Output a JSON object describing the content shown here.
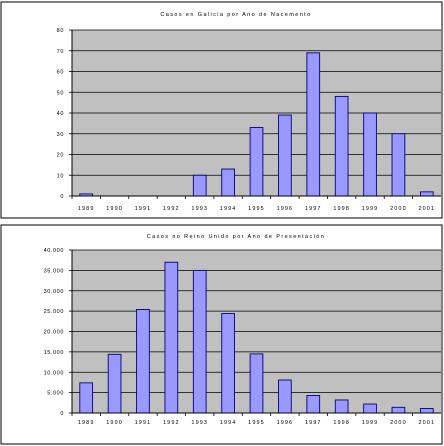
{
  "chart_data": [
    {
      "type": "bar",
      "title": "Casos en Galicia por Ano de Nacemento",
      "categories": [
        "1989",
        "1990",
        "1991",
        "1992",
        "1993",
        "1994",
        "1995",
        "1996",
        "1997",
        "1998",
        "1999",
        "2000",
        "2001"
      ],
      "values": [
        1,
        0,
        0,
        0,
        10,
        13,
        33,
        39,
        69,
        48,
        40,
        30,
        2
      ],
      "yticks": [
        "0",
        "10",
        "20",
        "30",
        "40",
        "50",
        "60",
        "70",
        "80"
      ],
      "ylim": [
        0,
        80
      ],
      "grid": true,
      "colors": {
        "plot_bg": "#c0c0c0",
        "bar_fill": "#9999ff",
        "bar_stroke": "#000080",
        "grid": "#000000"
      }
    },
    {
      "type": "bar",
      "title": "Casos no Reino Unido por Ano de Presentación",
      "categories": [
        "1989",
        "1990",
        "1991",
        "1992",
        "1993",
        "1994",
        "1995",
        "1996",
        "1997",
        "1998",
        "1999",
        "2000",
        "2001"
      ],
      "values": [
        7400,
        14400,
        25400,
        37000,
        35000,
        24400,
        14500,
        8100,
        4300,
        3200,
        2200,
        1400,
        1100
      ],
      "yticks": [
        "0",
        "5.000",
        "10.000",
        "15.000",
        "20.000",
        "25.000",
        "30.000",
        "35.000",
        "40.000"
      ],
      "ylim": [
        0,
        40000
      ],
      "grid": true,
      "colors": {
        "plot_bg": "#c0c0c0",
        "bar_fill": "#9999ff",
        "bar_stroke": "#000080",
        "grid": "#000000"
      }
    }
  ]
}
